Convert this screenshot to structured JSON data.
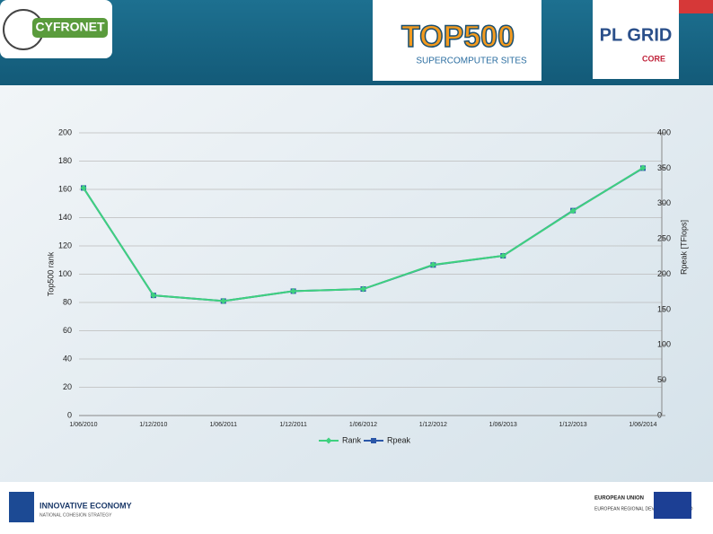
{
  "header": {
    "left_logo": "CYFRONET",
    "center_logo": "TOP500",
    "center_subtitle": "SUPERCOMPUTER SITES",
    "right_logo": "PL GRID",
    "right_sub": "CORE"
  },
  "footer": {
    "left_logo": "INNOVATIVE ECONOMY",
    "left_sub": "NATIONAL COHESION STRATEGY",
    "right_logo": "EUROPEAN UNION",
    "right_sub": "EUROPEAN REGIONAL DEVELOPMENT FUND"
  },
  "chart_data": {
    "type": "line",
    "categories": [
      "1/06/2010",
      "1/12/2010",
      "1/06/2011",
      "1/12/2011",
      "1/06/2012",
      "1/12/2012",
      "1/06/2013",
      "1/12/2013",
      "1/06/2014"
    ],
    "y_label": "Top500 rank",
    "y2_label": "Rpeak [TFlops]",
    "ylim": [
      0,
      200
    ],
    "yticks": [
      0,
      20,
      40,
      60,
      80,
      100,
      120,
      140,
      160,
      180,
      200
    ],
    "y2lim": [
      0,
      400
    ],
    "y2ticks": [
      0,
      50,
      100,
      150,
      200,
      250,
      300,
      350,
      400
    ],
    "grid": true,
    "legend": "bottom",
    "series": [
      {
        "name": "Rank",
        "color": "#3fd17f",
        "marker": "diamond",
        "values": [
          161,
          85,
          81,
          88,
          89.5,
          106.7,
          113,
          144.8,
          175.2
        ]
      },
      {
        "name": "Rpeak",
        "color": "#2b57a8",
        "marker": "square",
        "axis": "y2",
        "values": [
          322,
          170,
          162,
          176,
          179,
          213,
          226,
          290,
          350
        ]
      }
    ]
  }
}
